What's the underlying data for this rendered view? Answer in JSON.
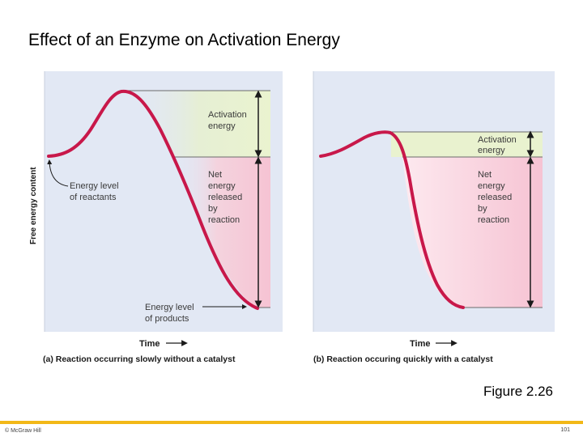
{
  "slide": {
    "title": "Effect of an Enzyme on Activation Energy",
    "figure_label": "Figure 2.26",
    "copyright": "© McGraw Hill",
    "page_number": "101"
  },
  "panel_a": {
    "caption": "(a) Reaction occurring slowly without a catalyst",
    "x_axis_label": "Time",
    "y_axis_label": "Free energy content",
    "activation_label": [
      "Activation",
      "energy"
    ],
    "net_label": [
      "Net",
      "energy",
      "released",
      "by",
      "reaction"
    ],
    "reactants_label": [
      "Energy level",
      "of reactants"
    ],
    "products_label": [
      "Energy level",
      "of products"
    ]
  },
  "panel_b": {
    "caption": "(b) Reaction occuring quickly with a catalyst",
    "x_axis_label": "Time",
    "activation_label": [
      "Activation",
      "energy"
    ],
    "net_label": [
      "Net",
      "energy",
      "released",
      "by",
      "reaction"
    ]
  },
  "colors": {
    "panel_bg": "#e2e8f4",
    "curve": "#c8184a",
    "activation_band": "#e9f2cf",
    "net_band": "#f7c8d6",
    "title": "#000000",
    "footer_bar": "#f2b818"
  }
}
